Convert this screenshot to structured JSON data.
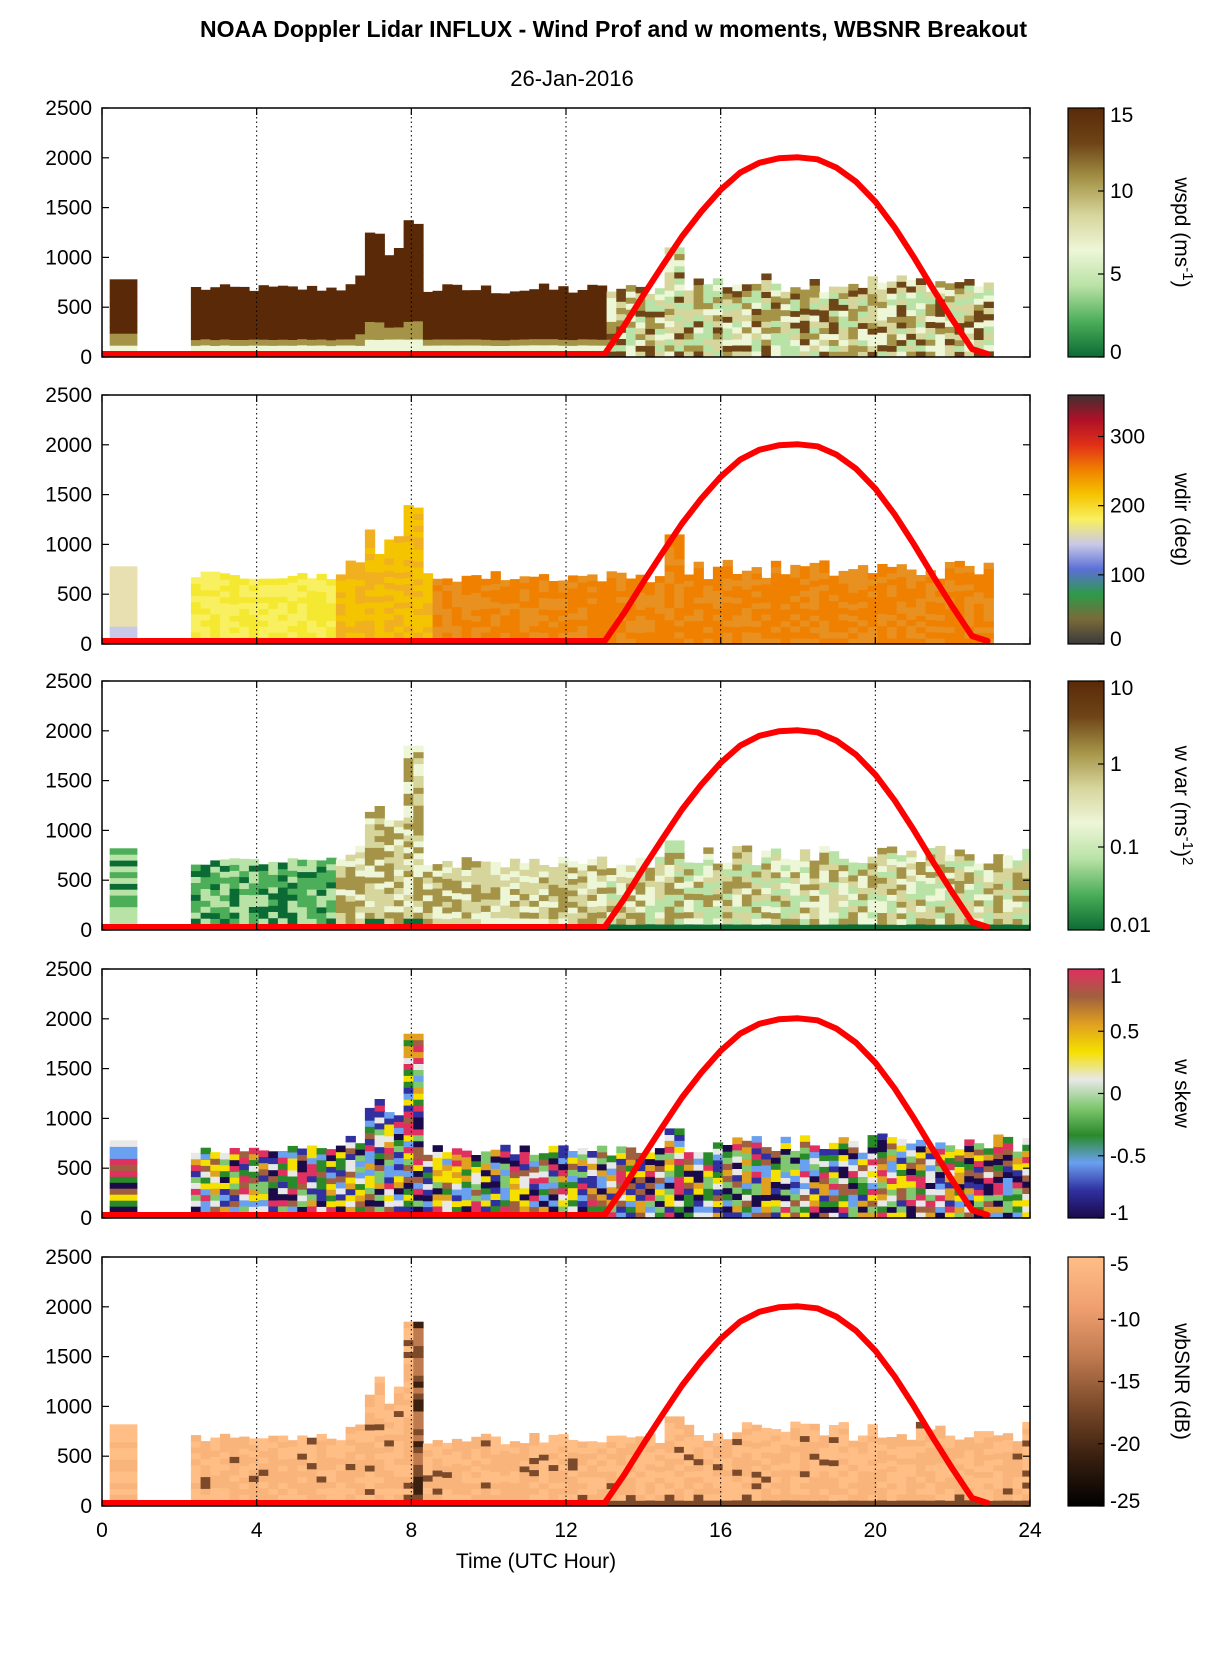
{
  "title": "NOAA Doppler Lidar INFLUX - Wind Prof and w moments, WBSNR Breakout",
  "subtitle": "26-Jan-2016",
  "chart_data": [
    {
      "type": "heatmap",
      "panel": "wspd",
      "colorbar_label": "wspd (ms-1)",
      "colorbar_label_parts": [
        "wspd (ms",
        "-1",
        ")"
      ],
      "colorbar_ticks": [
        "0",
        "5",
        "10",
        "15"
      ],
      "colorbar_range": [
        0,
        15
      ],
      "colors": [
        "#0b6b34",
        "#4cae59",
        "#b9e2a6",
        "#eef6d8",
        "#d6d59c",
        "#a59448",
        "#6e4517",
        "#5a2a08"
      ],
      "ylim": [
        0,
        2500
      ],
      "yticks": [
        "0",
        "500",
        "1000",
        "1500",
        "2000",
        "2500"
      ]
    },
    {
      "type": "heatmap",
      "panel": "wdir",
      "colorbar_label": "wdir (deg)",
      "colorbar_label_parts": [
        "wdir (deg)"
      ],
      "colorbar_ticks": [
        "0",
        "100",
        "200",
        "300"
      ],
      "colorbar_range": [
        0,
        360
      ],
      "colors": [
        "#3a3a3a",
        "#7a6a3a",
        "#2e9a4a",
        "#5b6fd6",
        "#c8c8e8",
        "#f8f060",
        "#f5c400",
        "#f08000",
        "#e03018",
        "#b01028",
        "#403030"
      ],
      "ylim": [
        0,
        2500
      ],
      "yticks": [
        "0",
        "500",
        "1000",
        "1500",
        "2000",
        "2500"
      ]
    },
    {
      "type": "heatmap",
      "panel": "wvar",
      "colorbar_label": "w var (ms-1)2",
      "colorbar_label_parts": [
        "w var (ms",
        "-1",
        ")",
        "2"
      ],
      "colorbar_ticks": [
        "0.01",
        "0.1",
        "1",
        "10"
      ],
      "colorbar_range": [
        0.01,
        10
      ],
      "colorbar_scale": "log",
      "colors": [
        "#0b6b34",
        "#4cae59",
        "#b9e2a6",
        "#eef6d8",
        "#d6d59c",
        "#a59448",
        "#6e4517",
        "#5a2a08"
      ],
      "ylim": [
        0,
        2500
      ],
      "yticks": [
        "0",
        "500",
        "1000",
        "1500",
        "2000",
        "2500"
      ]
    },
    {
      "type": "heatmap",
      "panel": "wskew",
      "colorbar_label": "w skew",
      "colorbar_label_parts": [
        "w skew"
      ],
      "colorbar_ticks": [
        "-1",
        "-0.5",
        "0",
        "0.5",
        "1"
      ],
      "colorbar_range": [
        -1,
        1
      ],
      "colors": [
        "#1a0a4a",
        "#3030a0",
        "#6aa0f0",
        "#2a8a2a",
        "#80c870",
        "#e8e8e8",
        "#f5e000",
        "#e0a020",
        "#a06040",
        "#e03060"
      ],
      "ylim": [
        0,
        2500
      ],
      "yticks": [
        "0",
        "500",
        "1000",
        "1500",
        "2000",
        "2500"
      ]
    },
    {
      "type": "heatmap",
      "panel": "wbsnr",
      "colorbar_label": "wbSNR (dB)",
      "colorbar_label_parts": [
        "wbSNR (dB)"
      ],
      "colorbar_ticks": [
        "-25",
        "-20",
        "-15",
        "-10",
        "-5"
      ],
      "colorbar_range": [
        -25,
        -5
      ],
      "colors": [
        "#000000",
        "#3a2010",
        "#7a4a2a",
        "#c07a50",
        "#f0a070",
        "#ffbe86"
      ],
      "ylim": [
        0,
        2500
      ],
      "yticks": [
        "0",
        "500",
        "1000",
        "1500",
        "2000",
        "2500"
      ]
    }
  ],
  "shared_axes": {
    "xlim": [
      0,
      24
    ],
    "xticks": [
      "0",
      "4",
      "8",
      "12",
      "16",
      "20",
      "24"
    ],
    "xlabel": "Time (UTC Hour)",
    "vertical_grid_hours": [
      4,
      8,
      12,
      16,
      20,
      24
    ],
    "vertical_grid_style": "dotted"
  },
  "overlay_curve": {
    "color": "#ff0000",
    "x": [
      0,
      0.5,
      13.0,
      13.5,
      14,
      14.5,
      15,
      15.5,
      16,
      16.5,
      17,
      17.5,
      18,
      18.5,
      19,
      19.5,
      20,
      20.5,
      21,
      21.5,
      22,
      22.5,
      22.9
    ],
    "y": [
      30,
      30,
      30,
      310,
      620,
      920,
      1210,
      1460,
      1680,
      1850,
      1950,
      1995,
      2005,
      1985,
      1900,
      1760,
      1560,
      1300,
      1000,
      680,
      370,
      80,
      30
    ]
  }
}
